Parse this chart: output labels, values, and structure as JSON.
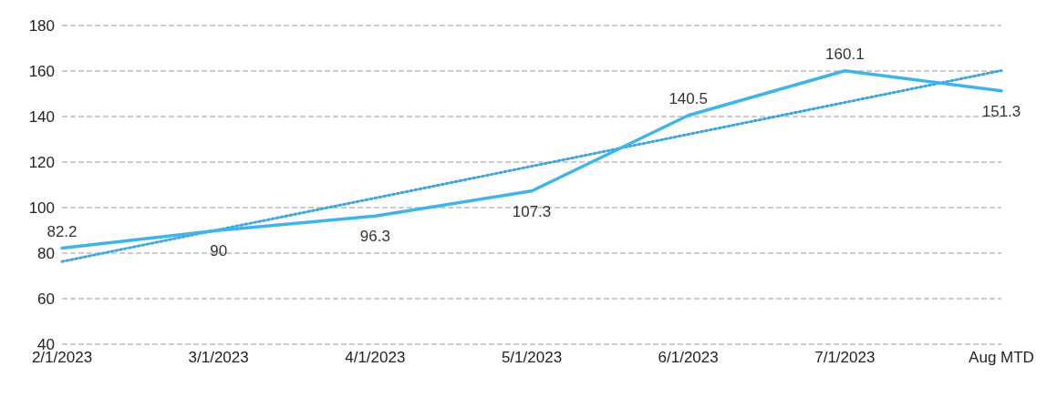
{
  "chart_data": {
    "type": "line",
    "categories": [
      "2/1/2023",
      "3/1/2023",
      "4/1/2023",
      "5/1/2023",
      "6/1/2023",
      "7/1/2023",
      "Aug MTD"
    ],
    "series": [
      {
        "color": "#3fb4ea",
        "values": [
          82.2,
          90,
          96.3,
          107.3,
          140.5,
          160.1,
          151.3
        ],
        "value_labels": [
          "82.2",
          "90",
          "96.3",
          "107.3",
          "140.5",
          "160.1",
          "151.3"
        ],
        "line_style": "solid"
      },
      {
        "color": "#3fa6e0",
        "values": [
          76.3,
          90.3,
          104.2,
          118.2,
          132.2,
          146.2,
          160.2
        ],
        "line_style": "dotted"
      }
    ],
    "ylim": [
      40,
      180
    ],
    "yticks": [
      40,
      60,
      80,
      100,
      120,
      140,
      160,
      180
    ],
    "grid": "y",
    "marker": "none"
  }
}
